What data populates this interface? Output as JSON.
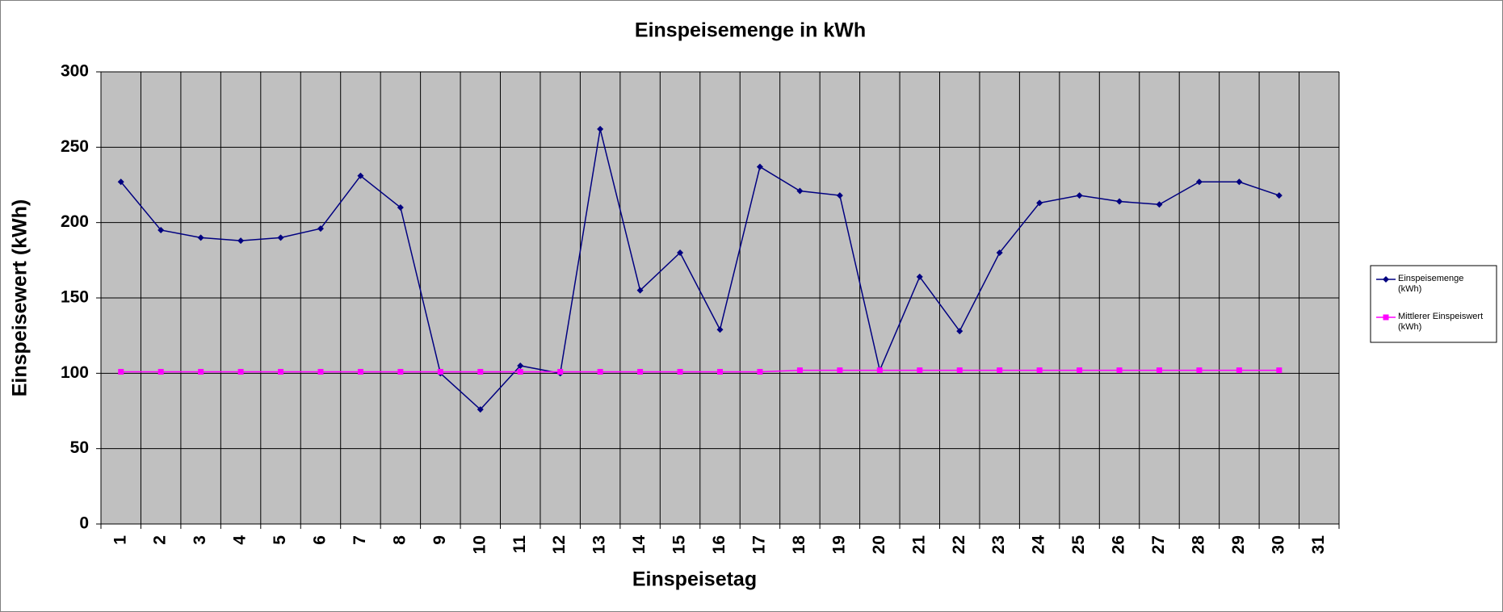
{
  "chart_data": {
    "type": "line",
    "title": "Einspeisemenge in kWh",
    "x_label": "Einspeisetag",
    "y_label": "Einspeisewert  (kWh)",
    "categories": [
      "1",
      "2",
      "3",
      "4",
      "5",
      "6",
      "7",
      "8",
      "9",
      "10",
      "11",
      "12",
      "13",
      "14",
      "15",
      "16",
      "17",
      "18",
      "19",
      "20",
      "21",
      "22",
      "23",
      "24",
      "25",
      "26",
      "27",
      "28",
      "29",
      "30",
      "31"
    ],
    "series": [
      {
        "name": "Einspeisemenge (kWh)",
        "color": "#000080",
        "marker": "diamond",
        "values": [
          227,
          195,
          190,
          188,
          190,
          196,
          231,
          210,
          100,
          76,
          105,
          100,
          262,
          155,
          180,
          129,
          237,
          221,
          218,
          102,
          164,
          128,
          180,
          213,
          218,
          214,
          212,
          227,
          227,
          218,
          null
        ]
      },
      {
        "name": "Mittlerer Einspeiswert (kWh)",
        "color": "#ff00ff",
        "marker": "square",
        "values": [
          101,
          101,
          101,
          101,
          101,
          101,
          101,
          101,
          101,
          101,
          101,
          101,
          101,
          101,
          101,
          101,
          101,
          102,
          102,
          102,
          102,
          102,
          102,
          102,
          102,
          102,
          102,
          102,
          102,
          102,
          null
        ]
      }
    ],
    "ylim": [
      0,
      300
    ],
    "yticks": [
      0,
      50,
      100,
      150,
      200,
      250,
      300
    ],
    "grid": true,
    "legend": "right"
  }
}
